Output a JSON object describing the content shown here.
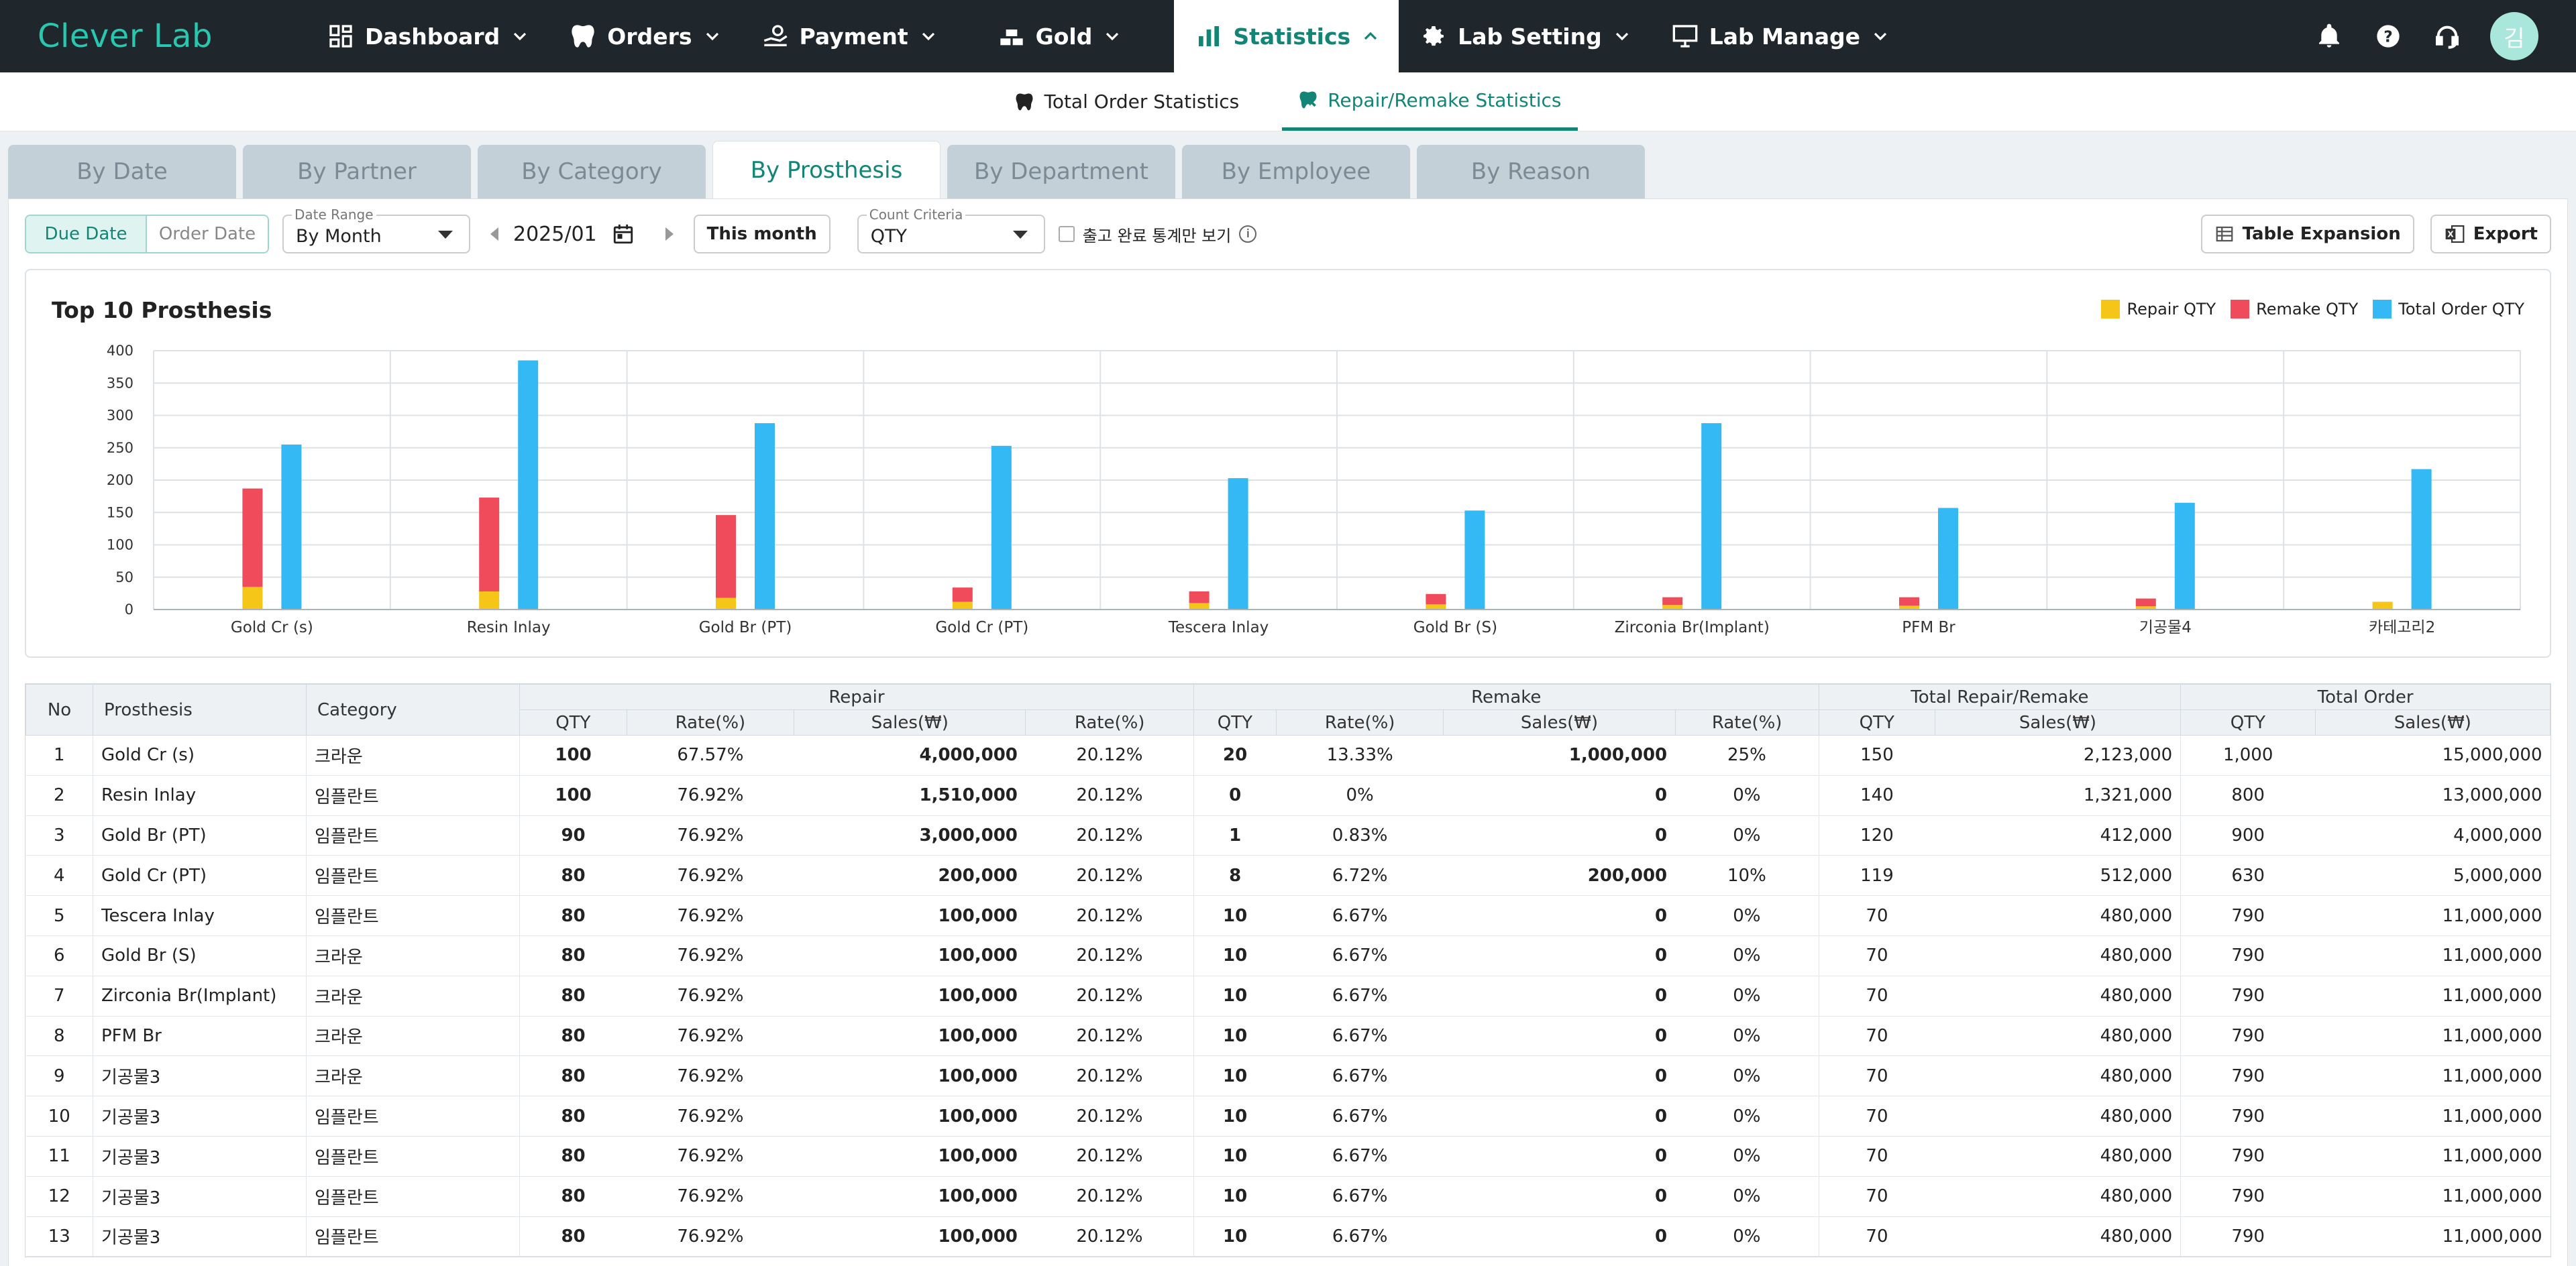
{
  "app": {
    "logo": "Clever Lab",
    "avatar": "김"
  },
  "nav": [
    {
      "label": "Dashboard",
      "icon": "dashboard-icon"
    },
    {
      "label": "Orders",
      "icon": "tooth-icon"
    },
    {
      "label": "Payment",
      "icon": "payment-icon"
    },
    {
      "label": "Gold",
      "icon": "gold-icon"
    },
    {
      "label": "Statistics",
      "icon": "chart-icon",
      "active": true
    },
    {
      "label": "Lab Setting",
      "icon": "gear-icon"
    },
    {
      "label": "Lab Manage",
      "icon": "monitor-icon"
    }
  ],
  "subnav": [
    {
      "label": "Total Order Statistics",
      "icon": "tooth-icon"
    },
    {
      "label": "Repair/Remake Statistics",
      "icon": "repair-icon",
      "active": true
    }
  ],
  "tabs": [
    "By Date",
    "By Partner",
    "By Category",
    "By Prosthesis",
    "By Department",
    "By Employee",
    "By Reason"
  ],
  "active_tab": "By Prosthesis",
  "filters": {
    "date_type": [
      "Due Date",
      "Order Date"
    ],
    "date_range_label": "Date Range",
    "date_range_value": "By Month",
    "period": "2025/01",
    "this_month": "This month",
    "count_label": "Count Criteria",
    "count_value": "QTY",
    "checkbox_label": "출고 완료 통계만 보기",
    "table_expansion": "Table Expansion",
    "export": "Export"
  },
  "chart_data": {
    "type": "bar",
    "title": "Top 10 Prosthesis",
    "categories": [
      "Gold Cr (s)",
      "Resin Inlay",
      "Gold Br (PT)",
      "Gold Cr (PT)",
      "Tescera Inlay",
      "Gold Br (S)",
      "Zirconia Br(Implant)",
      "PFM Br",
      "기공물4",
      "카테고리2"
    ],
    "series": [
      {
        "name": "Repair QTY",
        "color": "#f5c518",
        "values": [
          35,
          28,
          18,
          12,
          10,
          8,
          7,
          6,
          5,
          12
        ],
        "stack": "a"
      },
      {
        "name": "Remake QTY",
        "color": "#ef4b5a",
        "values": [
          152,
          145,
          128,
          22,
          18,
          16,
          12,
          13,
          12,
          0
        ],
        "stack": "a"
      },
      {
        "name": "Total Order QTY",
        "color": "#35b9f5",
        "values": [
          255,
          385,
          288,
          253,
          203,
          153,
          288,
          157,
          165,
          217
        ],
        "stack": "b"
      }
    ],
    "ylim": [
      0,
      400
    ],
    "yticks": [
      0,
      50,
      100,
      150,
      200,
      250,
      300,
      350,
      400
    ],
    "legend": "top-right",
    "grid": true
  },
  "table": {
    "groups": [
      "Repair",
      "Remake",
      "Total Repair/Remake",
      "Total Order"
    ],
    "fixed_headers": [
      "No",
      "Prosthesis",
      "Category"
    ],
    "sub_headers": [
      "QTY",
      "Rate(%)",
      "Sales(₩)",
      "Rate(%)",
      "QTY",
      "Rate(%)",
      "Sales(₩)",
      "Rate(%)",
      "QTY",
      "Sales(₩)",
      "QTY",
      "Sales(₩)"
    ],
    "rows": [
      [
        "1",
        "Gold Cr (s)",
        "크라운",
        "100",
        "67.57%",
        "4,000,000",
        "20.12%",
        "20",
        "13.33%",
        "1,000,000",
        "25%",
        "150",
        "2,123,000",
        "1,000",
        "15,000,000"
      ],
      [
        "2",
        "Resin Inlay",
        "임플란트",
        "100",
        "76.92%",
        "1,510,000",
        "20.12%",
        "0",
        "0%",
        "0",
        "0%",
        "140",
        "1,321,000",
        "800",
        "13,000,000"
      ],
      [
        "3",
        "Gold Br (PT)",
        "임플란트",
        "90",
        "76.92%",
        "3,000,000",
        "20.12%",
        "1",
        "0.83%",
        "0",
        "0%",
        "120",
        "412,000",
        "900",
        "4,000,000"
      ],
      [
        "4",
        "Gold Cr (PT)",
        "임플란트",
        "80",
        "76.92%",
        "200,000",
        "20.12%",
        "8",
        "6.72%",
        "200,000",
        "10%",
        "119",
        "512,000",
        "630",
        "5,000,000"
      ],
      [
        "5",
        "Tescera Inlay",
        "임플란트",
        "80",
        "76.92%",
        "100,000",
        "20.12%",
        "10",
        "6.67%",
        "0",
        "0%",
        "70",
        "480,000",
        "790",
        "11,000,000"
      ],
      [
        "6",
        "Gold Br (S)",
        "크라운",
        "80",
        "76.92%",
        "100,000",
        "20.12%",
        "10",
        "6.67%",
        "0",
        "0%",
        "70",
        "480,000",
        "790",
        "11,000,000"
      ],
      [
        "7",
        "Zirconia Br(Implant)",
        "크라운",
        "80",
        "76.92%",
        "100,000",
        "20.12%",
        "10",
        "6.67%",
        "0",
        "0%",
        "70",
        "480,000",
        "790",
        "11,000,000"
      ],
      [
        "8",
        "PFM Br",
        "크라운",
        "80",
        "76.92%",
        "100,000",
        "20.12%",
        "10",
        "6.67%",
        "0",
        "0%",
        "70",
        "480,000",
        "790",
        "11,000,000"
      ],
      [
        "9",
        "기공물3",
        "크라운",
        "80",
        "76.92%",
        "100,000",
        "20.12%",
        "10",
        "6.67%",
        "0",
        "0%",
        "70",
        "480,000",
        "790",
        "11,000,000"
      ],
      [
        "10",
        "기공물3",
        "임플란트",
        "80",
        "76.92%",
        "100,000",
        "20.12%",
        "10",
        "6.67%",
        "0",
        "0%",
        "70",
        "480,000",
        "790",
        "11,000,000"
      ],
      [
        "11",
        "기공물3",
        "임플란트",
        "80",
        "76.92%",
        "100,000",
        "20.12%",
        "10",
        "6.67%",
        "0",
        "0%",
        "70",
        "480,000",
        "790",
        "11,000,000"
      ],
      [
        "12",
        "기공물3",
        "임플란트",
        "80",
        "76.92%",
        "100,000",
        "20.12%",
        "10",
        "6.67%",
        "0",
        "0%",
        "70",
        "480,000",
        "790",
        "11,000,000"
      ],
      [
        "13",
        "기공물3",
        "임플란트",
        "80",
        "76.92%",
        "100,000",
        "20.12%",
        "10",
        "6.67%",
        "0",
        "0%",
        "70",
        "480,000",
        "790",
        "11,000,000"
      ]
    ]
  }
}
